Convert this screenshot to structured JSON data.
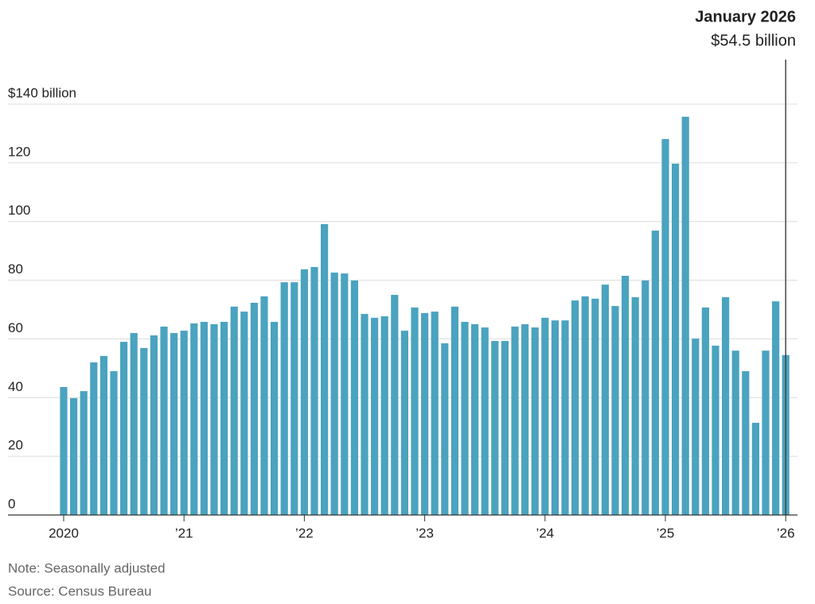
{
  "chart_data": {
    "type": "bar",
    "annotation": {
      "title": "January 2026",
      "label": "$54.5 billion"
    },
    "categories": [
      "2020",
      null,
      null,
      null,
      null,
      null,
      null,
      null,
      null,
      null,
      null,
      null,
      "’21",
      null,
      null,
      null,
      null,
      null,
      null,
      null,
      null,
      null,
      null,
      null,
      "’22",
      null,
      null,
      null,
      null,
      null,
      null,
      null,
      null,
      null,
      null,
      null,
      "’23",
      null,
      null,
      null,
      null,
      null,
      null,
      null,
      null,
      null,
      null,
      null,
      "’24",
      null,
      null,
      null,
      null,
      null,
      null,
      null,
      null,
      null,
      null,
      null,
      "’25",
      null,
      null,
      null,
      null,
      null,
      null,
      null,
      null,
      null,
      null,
      null,
      "’26"
    ],
    "values": [
      43.6,
      39.8,
      42.2,
      52,
      54.2,
      49,
      59,
      62,
      56.9,
      61.2,
      64.2,
      62,
      62.8,
      65.3,
      65.8,
      65,
      65.8,
      71,
      69.3,
      72.3,
      74.5,
      65.8,
      79.3,
      79.3,
      83.7,
      84.5,
      99.1,
      82.6,
      82.3,
      79.9,
      68.5,
      67.2,
      67.7,
      75,
      62.8,
      70.7,
      68.8,
      69.3,
      58.5,
      71,
      65.8,
      65,
      63.9,
      59.3,
      59.3,
      64.2,
      65,
      63.9,
      67.2,
      66.3,
      66.3,
      73.1,
      74.5,
      73.7,
      78.5,
      71.2,
      81.5,
      74.2,
      79.9,
      96.9,
      128.1,
      119.7,
      135.7,
      60.1,
      70.7,
      57.7,
      74.2,
      56,
      49,
      31.4,
      56,
      72.8,
      54.5
    ],
    "color": "#4aa3bf",
    "ylim": [
      0,
      140
    ],
    "yticks": [
      0,
      20,
      40,
      60,
      80,
      100,
      120,
      {
        "value": 140,
        "label": "$140 billion"
      }
    ],
    "grid": true,
    "note": "Note: Seasonally adjusted",
    "source": "Source: Census Bureau"
  }
}
